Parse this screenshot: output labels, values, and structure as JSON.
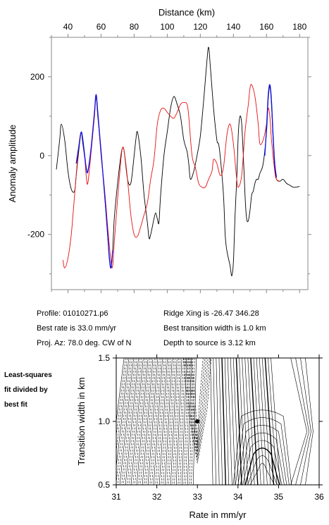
{
  "chart_data": [
    {
      "type": "line",
      "xlabel_top": "Distance (km)",
      "ylabel": "Anomaly amplitude",
      "xlim": [
        30,
        185
      ],
      "ylim": [
        -340,
        300
      ],
      "x_ticks": [
        40,
        60,
        80,
        100,
        120,
        140,
        160,
        180
      ],
      "y_ticks": [
        -200,
        0,
        200
      ],
      "series": [
        {
          "color": "#000000",
          "points": [
            [
              33,
              -35
            ],
            [
              35,
              40
            ],
            [
              36,
              80
            ],
            [
              38,
              40
            ],
            [
              40,
              -40
            ],
            [
              42,
              -85
            ],
            [
              44,
              -90
            ],
            [
              45,
              -50
            ],
            [
              47,
              30
            ],
            [
              48,
              60
            ],
            [
              49,
              30
            ],
            [
              51,
              -30
            ],
            [
              52,
              -40
            ],
            [
              54,
              20
            ],
            [
              56,
              110
            ],
            [
              57,
              150
            ],
            [
              58,
              100
            ],
            [
              60,
              10
            ],
            [
              62,
              -90
            ],
            [
              64,
              -200
            ],
            [
              65,
              -260
            ],
            [
              66,
              -285
            ],
            [
              67,
              -240
            ],
            [
              68,
              -160
            ],
            [
              70,
              -70
            ],
            [
              72,
              0
            ],
            [
              73,
              20
            ],
            [
              74,
              10
            ],
            [
              76,
              -60
            ],
            [
              78,
              -70
            ],
            [
              80,
              0
            ],
            [
              81,
              40
            ],
            [
              82,
              60
            ],
            [
              84,
              0
            ],
            [
              86,
              -100
            ],
            [
              88,
              -170
            ],
            [
              89,
              -210
            ],
            [
              90,
              -200
            ],
            [
              91,
              -180
            ],
            [
              92,
              -160
            ],
            [
              93,
              -145
            ],
            [
              94,
              -160
            ],
            [
              95,
              -170
            ],
            [
              96,
              -100
            ],
            [
              98,
              0
            ],
            [
              100,
              60
            ],
            [
              102,
              120
            ],
            [
              104,
              150
            ],
            [
              106,
              130
            ],
            [
              108,
              100
            ],
            [
              110,
              40
            ],
            [
              112,
              10
            ],
            [
              113,
              -20
            ],
            [
              114,
              -60
            ],
            [
              116,
              -40
            ],
            [
              118,
              0
            ],
            [
              120,
              50
            ],
            [
              122,
              140
            ],
            [
              124,
              240
            ],
            [
              125,
              275
            ],
            [
              126,
              230
            ],
            [
              128,
              120
            ],
            [
              130,
              40
            ],
            [
              131,
              30
            ],
            [
              132,
              0
            ],
            [
              134,
              -100
            ],
            [
              135,
              -200
            ],
            [
              136,
              -240
            ],
            [
              138,
              -280
            ],
            [
              139,
              -305
            ],
            [
              140,
              -270
            ],
            [
              141,
              -150
            ],
            [
              142,
              -60
            ],
            [
              143,
              60
            ],
            [
              144,
              100
            ],
            [
              145,
              80
            ],
            [
              146,
              0
            ],
            [
              147,
              -100
            ],
            [
              148,
              -160
            ],
            [
              149,
              -165
            ],
            [
              150,
              -140
            ],
            [
              151,
              -100
            ],
            [
              152,
              -90
            ],
            [
              153,
              -70
            ],
            [
              154,
              -60
            ],
            [
              155,
              -60
            ],
            [
              156,
              -45
            ],
            [
              158,
              -20
            ],
            [
              160,
              60
            ],
            [
              161,
              140
            ],
            [
              162,
              175
            ],
            [
              163,
              130
            ],
            [
              164,
              40
            ],
            [
              165,
              -30
            ],
            [
              166,
              -60
            ],
            [
              168,
              -65
            ],
            [
              170,
              -60
            ],
            [
              172,
              -70
            ],
            [
              174,
              -75
            ],
            [
              176,
              -80
            ],
            [
              178,
              -80
            ],
            [
              180,
              -78
            ]
          ]
        },
        {
          "color": "#e81010",
          "points": [
            [
              37,
              -265
            ],
            [
              38,
              -285
            ],
            [
              40,
              -260
            ],
            [
              42,
              -200
            ],
            [
              44,
              -100
            ],
            [
              46,
              0
            ],
            [
              48,
              60
            ],
            [
              50,
              0
            ],
            [
              51,
              -50
            ],
            [
              52,
              -70
            ],
            [
              54,
              10
            ],
            [
              56,
              100
            ],
            [
              57,
              150
            ],
            [
              58,
              110
            ],
            [
              60,
              0
            ],
            [
              62,
              -80
            ],
            [
              64,
              -180
            ],
            [
              66,
              -270
            ],
            [
              67,
              -280
            ],
            [
              68,
              -220
            ],
            [
              70,
              -110
            ],
            [
              72,
              -10
            ],
            [
              73,
              20
            ],
            [
              74,
              10
            ],
            [
              76,
              -60
            ],
            [
              78,
              -150
            ],
            [
              80,
              -200
            ],
            [
              82,
              -205
            ],
            [
              84,
              -180
            ],
            [
              86,
              -150
            ],
            [
              88,
              -120
            ],
            [
              90,
              -60
            ],
            [
              92,
              -10
            ],
            [
              94,
              80
            ],
            [
              96,
              115
            ],
            [
              98,
              120
            ],
            [
              100,
              110
            ],
            [
              102,
              100
            ],
            [
              104,
              95
            ],
            [
              106,
              110
            ],
            [
              108,
              130
            ],
            [
              110,
              135
            ],
            [
              112,
              130
            ],
            [
              113,
              100
            ],
            [
              115,
              0
            ],
            [
              117,
              -30
            ],
            [
              119,
              -70
            ],
            [
              121,
              -80
            ],
            [
              123,
              -80
            ],
            [
              125,
              -60
            ],
            [
              127,
              -40
            ],
            [
              128,
              -10
            ],
            [
              130,
              -20
            ],
            [
              132,
              -50
            ],
            [
              134,
              -30
            ],
            [
              136,
              50
            ],
            [
              138,
              80
            ],
            [
              140,
              30
            ],
            [
              142,
              -60
            ],
            [
              143,
              -80
            ],
            [
              145,
              -50
            ],
            [
              147,
              60
            ],
            [
              149,
              130
            ],
            [
              150,
              170
            ],
            [
              151,
              180
            ],
            [
              153,
              150
            ],
            [
              155,
              80
            ],
            [
              156,
              30
            ],
            [
              158,
              40
            ],
            [
              160,
              80
            ],
            [
              161,
              120
            ],
            [
              162,
              100
            ],
            [
              163,
              40
            ],
            [
              165,
              -40
            ],
            [
              166,
              -60
            ],
            [
              168,
              -65
            ]
          ]
        },
        {
          "color": "#1010e8",
          "segments": [
            [
              [
                45,
                -20
              ],
              [
                47,
                35
              ],
              [
                48,
                60
              ],
              [
                49,
                40
              ],
              [
                51,
                -30
              ],
              [
                52,
                -40
              ],
              [
                54,
                20
              ],
              [
                56,
                110
              ],
              [
                57,
                155
              ],
              [
                58,
                110
              ],
              [
                60,
                10
              ],
              [
                62,
                -90
              ],
              [
                64,
                -200
              ],
              [
                65,
                -260
              ],
              [
                66,
                -285
              ],
              [
                67,
                -240
              ]
            ],
            [
              [
                159,
                0
              ],
              [
                160,
                70
              ],
              [
                161,
                150
              ],
              [
                162,
                180
              ],
              [
                163,
                140
              ],
              [
                164,
                50
              ],
              [
                165,
                -20
              ],
              [
                166,
                -55
              ]
            ]
          ]
        }
      ]
    },
    {
      "type": "contour",
      "xlabel": "Rate in mm/yr",
      "ylabel": "Transition width in km",
      "xlim": [
        31,
        36
      ],
      "ylim": [
        0.5,
        1.5
      ],
      "x_ticks": [
        31,
        32,
        33,
        34,
        35,
        36
      ],
      "y_ticks": [
        0.5,
        1.0,
        1.5
      ],
      "best_fit_point": [
        33.0,
        1.0
      ]
    }
  ],
  "info": {
    "profile": "Profile: 01010271.p6",
    "best_rate": "Best rate is 33.0 mm/yr",
    "proj_az": "Proj. Az: 78.0 deg. CW of N",
    "ridge_xing": "Ridge Xing is -26.47 346.28",
    "transition": "Best transition width is 1.0 km",
    "depth": "Depth to source is   3.12 km"
  },
  "side_label": [
    "Least-squares",
    "fit divided by",
    "best fit"
  ]
}
